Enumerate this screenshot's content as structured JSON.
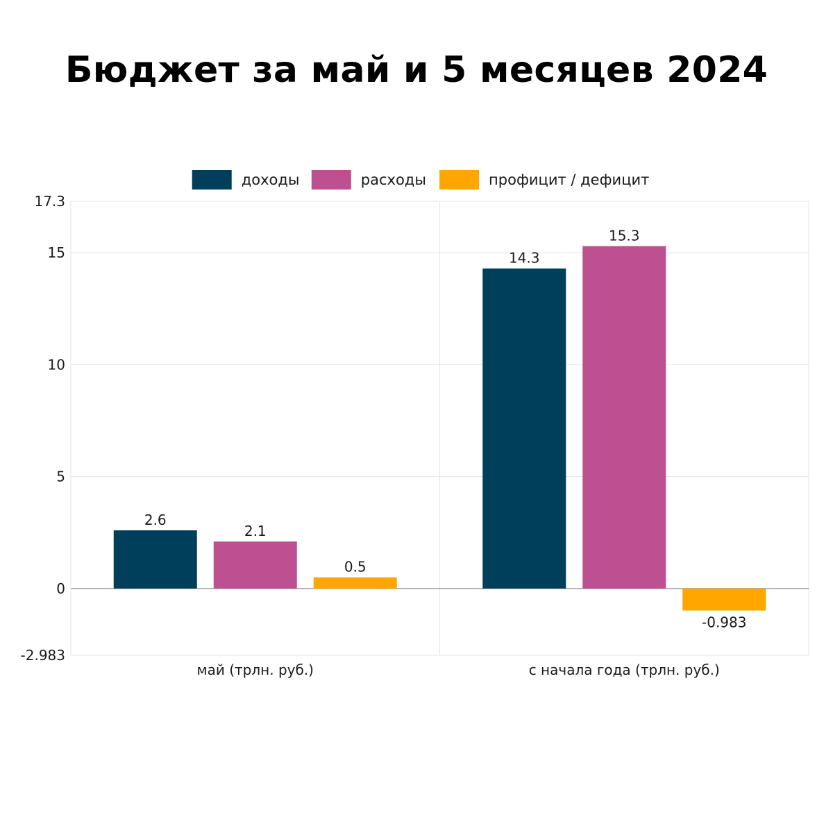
{
  "title": "Бюджет за май и 5 месяцев 2024",
  "legend": [
    {
      "label": "доходы",
      "color": "#003F5C"
    },
    {
      "label": "расходы",
      "color": "#BC5090"
    },
    {
      "label": "профицит / дефицит",
      "color": "#FFA600"
    }
  ],
  "chart_data": {
    "type": "bar",
    "title": "Бюджет за май и 5 месяцев 2024",
    "categories": [
      "май (трлн. руб.)",
      "с начала года (трлн. руб.)"
    ],
    "series": [
      {
        "name": "доходы",
        "color": "#003F5C",
        "values": [
          2.6,
          14.3
        ],
        "labels": [
          "2.6",
          "14.3"
        ]
      },
      {
        "name": "расходы",
        "color": "#BC5090",
        "values": [
          2.1,
          15.3
        ],
        "labels": [
          "2.1",
          "15.3"
        ]
      },
      {
        "name": "профицит / дефицит",
        "color": "#FFA600",
        "values": [
          0.5,
          -0.983
        ],
        "labels": [
          "0.5",
          "-0.983"
        ]
      }
    ],
    "ylim": [
      -2.983,
      17.3
    ],
    "yticks": [
      -2.983,
      0,
      5,
      10,
      15,
      17.3
    ],
    "ytick_labels": [
      "-2.983",
      "0",
      "5",
      "10",
      "15",
      "17.3"
    ],
    "grid": true,
    "legend_position": "top",
    "xlabel": "",
    "ylabel": ""
  }
}
